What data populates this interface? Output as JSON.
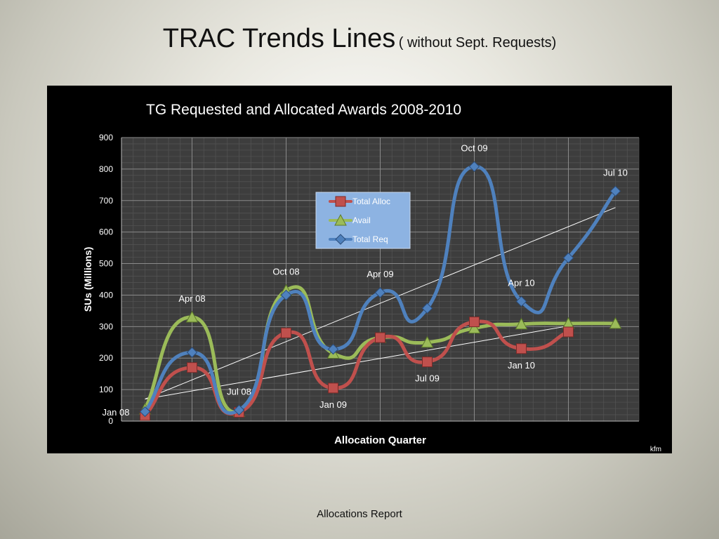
{
  "slide": {
    "title": "TRAC Trends Lines",
    "subtitle": "( without Sept. Requests)",
    "footer": "Allocations Report"
  },
  "chart_data": {
    "type": "line",
    "title": "TG Requested and  Allocated Awards 2008-2010",
    "xlabel": "Allocation Quarter",
    "ylabel": "SUs (Millions)",
    "ylim": [
      0,
      900
    ],
    "yticks": [
      0,
      100,
      200,
      300,
      400,
      500,
      600,
      700,
      800,
      900
    ],
    "grid": true,
    "legend_position": "upper-center",
    "credit": "kfm",
    "categories": [
      "Jan 08",
      "Apr 08",
      "Jul 08",
      "Oct 08",
      "Jan 09",
      "Apr 09",
      "Jul 09",
      "Oct 09",
      "Jan 10",
      "Apr 10",
      "Jul 10"
    ],
    "series": [
      {
        "name": "Total Alloc",
        "marker": "square",
        "color": "#c0504d",
        "values": [
          18,
          170,
          28,
          280,
          105,
          265,
          188,
          315,
          230,
          283,
          null
        ]
      },
      {
        "name": "Avail",
        "marker": "triangle",
        "color": "#9bbb59",
        "values": [
          38,
          330,
          30,
          415,
          215,
          265,
          250,
          295,
          308,
          310,
          310
        ]
      },
      {
        "name": "Total Req",
        "marker": "diamond",
        "color": "#4f81bd",
        "values": [
          30,
          218,
          35,
          400,
          228,
          408,
          358,
          808,
          380,
          518,
          730
        ]
      }
    ],
    "trendlines": [
      {
        "series": "Total Req",
        "from": [
          0,
          70
        ],
        "to": [
          10,
          678
        ]
      },
      {
        "series": "Total Alloc",
        "from": [
          0,
          70
        ],
        "to": [
          9,
          302
        ]
      }
    ],
    "point_labels": [
      {
        "text": "Jan 08",
        "x": 0,
        "y": 18,
        "pos": "left"
      },
      {
        "text": "Apr 08",
        "x": 1,
        "y": 330,
        "pos": "above"
      },
      {
        "text": "Jul 08",
        "x": 2,
        "y": 35,
        "pos": "above"
      },
      {
        "text": "Oct 08",
        "x": 3,
        "y": 415,
        "pos": "above"
      },
      {
        "text": "Jan 09",
        "x": 4,
        "y": 105,
        "pos": "below"
      },
      {
        "text": "Apr 09",
        "x": 5,
        "y": 408,
        "pos": "above"
      },
      {
        "text": "Jul 09",
        "x": 6,
        "y": 188,
        "pos": "below"
      },
      {
        "text": "Oct 09",
        "x": 7,
        "y": 808,
        "pos": "above"
      },
      {
        "text": "Jan 10",
        "x": 8,
        "y": 230,
        "pos": "below"
      },
      {
        "text": "Apr 10",
        "x": 8,
        "y": 380,
        "pos": "above"
      },
      {
        "text": "Jul 10",
        "x": 10,
        "y": 730,
        "pos": "above"
      }
    ]
  }
}
